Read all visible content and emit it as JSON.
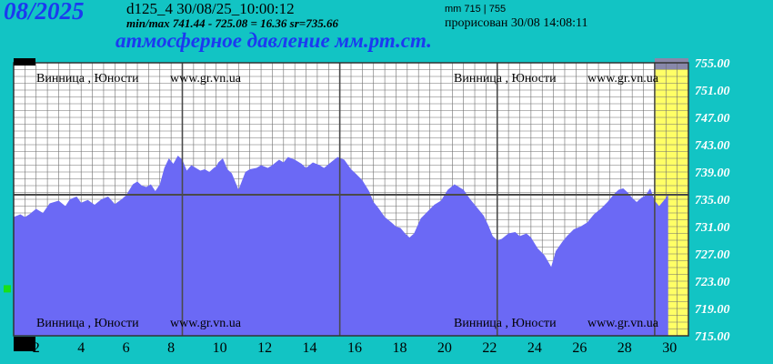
{
  "header": {
    "month_year": "08/2025",
    "dataset_and_time": "d125_4   30/08/25_10:00:12",
    "minmax_line": "min/max   741.44 - 725.08 = 16.36      sr=735.66",
    "mm_range": "mm 715 | 755",
    "drawn_at": "прорисован 30/08 14:08:11",
    "subtitle": "атмосферное давление мм.рт.ст."
  },
  "watermarks": {
    "text_1": "Винница , Юности",
    "text_2": "www.gr.vn.ua"
  },
  "colors": {
    "background": "#12c4c4",
    "plot_bg": "#ffffff",
    "area_fill": "#6b69f5",
    "grid": "#6e6e6e",
    "major_grid": "#4a4a4a",
    "mean_line": "#4a4a4a",
    "current_day_band": "#ffff66",
    "title_blue": "#1b3af0"
  },
  "chart_data": {
    "type": "area",
    "title": "атмосферное давление мм.рт.ст.",
    "x_unit": "day of month",
    "xlim": [
      1,
      31
    ],
    "ylim": [
      715,
      755
    ],
    "mean": 735.66,
    "min": 725.08,
    "max": 741.44,
    "y_ticks": [
      "755.00",
      "751.00",
      "747.00",
      "743.00",
      "739.00",
      "735.00",
      "731.00",
      "727.00",
      "723.00",
      "719.00",
      "715.00"
    ],
    "x_ticks": [
      "2",
      "4",
      "6",
      "8",
      "10",
      "12",
      "14",
      "16",
      "18",
      "20",
      "22",
      "24",
      "26",
      "28",
      "30"
    ],
    "grid": true,
    "highlight_day": 30,
    "x": [
      1.0,
      1.3,
      1.5,
      1.7,
      2.0,
      2.3,
      2.6,
      3.0,
      3.3,
      3.5,
      3.8,
      4.0,
      4.3,
      4.6,
      4.9,
      5.2,
      5.5,
      5.8,
      6.0,
      6.3,
      6.5,
      6.7,
      6.9,
      7.1,
      7.3,
      7.5,
      7.7,
      7.9,
      8.1,
      8.3,
      8.5,
      8.7,
      8.9,
      9.1,
      9.3,
      9.5,
      9.7,
      9.9,
      10.0,
      10.1,
      10.3,
      10.5,
      10.7,
      11.0,
      11.3,
      11.5,
      11.8,
      12.0,
      12.3,
      12.5,
      12.8,
      13.0,
      13.2,
      13.5,
      13.8,
      14.0,
      14.3,
      14.6,
      14.8,
      15.1,
      15.4,
      15.7,
      16.0,
      16.2,
      16.5,
      16.8,
      17.0,
      17.2,
      17.5,
      17.8,
      18.0,
      18.2,
      18.4,
      18.6,
      18.8,
      19.1,
      19.4,
      19.7,
      20.0,
      20.3,
      20.6,
      21.0,
      21.3,
      21.6,
      21.9,
      22.1,
      22.3,
      22.5,
      22.7,
      23.0,
      23.3,
      23.5,
      23.8,
      24.0,
      24.3,
      24.6,
      24.9,
      25.1,
      25.4,
      25.6,
      25.9,
      26.2,
      26.5,
      26.8,
      27.1,
      27.4,
      27.7,
      27.9,
      28.1,
      28.3,
      28.5,
      28.7,
      28.9,
      29.1,
      29.3,
      29.5,
      29.7,
      29.9,
      30.0,
      30.1
    ],
    "y": [
      732.4,
      732.8,
      732.4,
      732.8,
      733.6,
      733.0,
      734.4,
      734.8,
      734.0,
      735.0,
      735.4,
      734.5,
      734.9,
      734.2,
      735.0,
      735.4,
      734.3,
      735.0,
      735.6,
      737.2,
      737.6,
      737.0,
      736.8,
      737.2,
      736.2,
      737.2,
      739.6,
      741.0,
      740.2,
      741.4,
      740.8,
      739.2,
      740.0,
      739.6,
      739.2,
      739.4,
      739.0,
      739.6,
      739.8,
      740.4,
      741.0,
      739.4,
      738.8,
      736.4,
      739.0,
      739.4,
      739.6,
      740.0,
      739.6,
      740.0,
      740.8,
      740.4,
      741.2,
      740.8,
      740.2,
      739.6,
      740.4,
      740.0,
      739.6,
      740.4,
      741.2,
      740.8,
      739.4,
      738.8,
      737.8,
      736.2,
      734.6,
      733.8,
      732.4,
      731.6,
      731.0,
      730.8,
      730.0,
      729.4,
      730.0,
      732.2,
      733.2,
      734.2,
      734.8,
      736.4,
      737.2,
      736.4,
      735.0,
      733.8,
      732.6,
      731.2,
      729.6,
      729.0,
      729.2,
      730.0,
      730.2,
      729.6,
      730.0,
      729.4,
      727.8,
      726.8,
      725.1,
      727.4,
      728.8,
      729.6,
      730.6,
      731.0,
      731.6,
      732.8,
      733.6,
      734.6,
      735.8,
      736.4,
      736.6,
      736.0,
      735.2,
      734.6,
      735.2,
      735.6,
      736.6,
      734.8,
      734.0,
      734.8,
      735.2,
      735.8
    ]
  }
}
